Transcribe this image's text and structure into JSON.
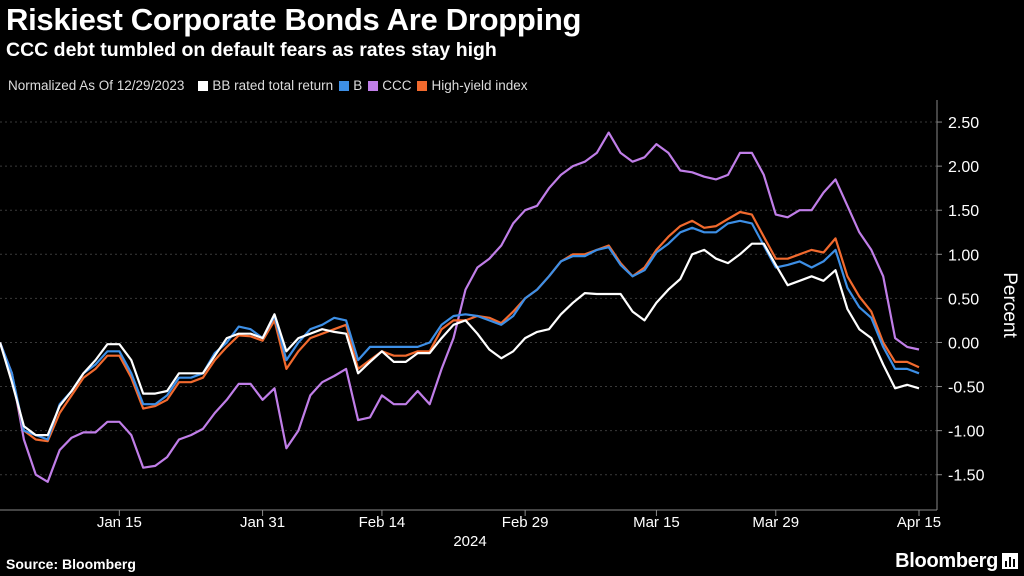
{
  "header": {
    "title": "Riskiest Corporate Bonds Are Dropping",
    "subtitle": "CCC debt tumbled on default fears as rates stay high"
  },
  "legend": {
    "note": "Normalized As Of 12/29/2023",
    "items": [
      {
        "label": "BB rated total return",
        "color": "#ffffff"
      },
      {
        "label": "B",
        "color": "#3d8fe6"
      },
      {
        "label": "CCC",
        "color": "#c07ee8"
      },
      {
        "label": "High-yield index",
        "color": "#f26a2e"
      }
    ]
  },
  "footer": {
    "source": "Source: Bloomberg",
    "brand": "Bloomberg"
  },
  "chart_data": {
    "type": "line",
    "title": "Riskiest Corporate Bonds Are Dropping",
    "ylabel": "Percent",
    "xlabel": "2024",
    "ylim": [
      -1.9,
      2.75
    ],
    "yticks": [
      2.5,
      2.0,
      1.5,
      1.0,
      0.5,
      0.0,
      -0.5,
      -1.0,
      -1.5
    ],
    "ytick_labels": [
      "2.50",
      "2.00",
      "1.50",
      "1.00",
      "0.50",
      "0.00",
      "-0.50",
      "-1.00",
      "-1.50"
    ],
    "x_index_range": [
      0,
      77
    ],
    "xticks": [
      {
        "label": "Jan 15",
        "index": 10
      },
      {
        "label": "Jan 31",
        "index": 22
      },
      {
        "label": "Feb 14",
        "index": 32
      },
      {
        "label": "Feb 29",
        "index": 44
      },
      {
        "label": "Mar 15",
        "index": 55
      },
      {
        "label": "Mar 29",
        "index": 65
      },
      {
        "label": "Apr 15",
        "index": 77
      }
    ],
    "series": [
      {
        "name": "CCC",
        "color": "#c07ee8",
        "values": [
          0,
          -0.35,
          -1.1,
          -1.5,
          -1.58,
          -1.22,
          -1.08,
          -1.02,
          -1.02,
          -0.9,
          -0.9,
          -1.05,
          -1.42,
          -1.4,
          -1.3,
          -1.1,
          -1.05,
          -0.98,
          -0.8,
          -0.65,
          -0.47,
          -0.47,
          -0.65,
          -0.52,
          -1.2,
          -1.0,
          -0.6,
          -0.45,
          -0.38,
          -0.3,
          -0.88,
          -0.85,
          -0.6,
          -0.7,
          -0.7,
          -0.55,
          -0.7,
          -0.3,
          0.05,
          0.6,
          0.85,
          0.95,
          1.1,
          1.35,
          1.5,
          1.55,
          1.75,
          1.9,
          2.0,
          2.05,
          2.15,
          2.38,
          2.15,
          2.05,
          2.1,
          2.25,
          2.15,
          1.95,
          1.93,
          1.88,
          1.85,
          1.9,
          2.15,
          2.15,
          1.9,
          1.45,
          1.42,
          1.5,
          1.5,
          1.7,
          1.85,
          1.55,
          1.25,
          1.05,
          0.75,
          0.05,
          -0.05,
          -0.08
        ]
      },
      {
        "name": "High-yield index",
        "color": "#f26a2e",
        "values": [
          0,
          -0.4,
          -1.0,
          -1.1,
          -1.12,
          -0.8,
          -0.6,
          -0.4,
          -0.3,
          -0.15,
          -0.15,
          -0.4,
          -0.75,
          -0.72,
          -0.65,
          -0.45,
          -0.45,
          -0.4,
          -0.2,
          -0.05,
          0.08,
          0.07,
          0.02,
          0.25,
          -0.3,
          -0.1,
          0.05,
          0.1,
          0.15,
          0.2,
          -0.3,
          -0.2,
          -0.1,
          -0.15,
          -0.15,
          -0.1,
          -0.1,
          0.15,
          0.25,
          0.25,
          0.3,
          0.28,
          0.22,
          0.35,
          0.5,
          0.6,
          0.75,
          0.92,
          1.0,
          1.0,
          1.05,
          1.1,
          0.9,
          0.75,
          0.85,
          1.05,
          1.2,
          1.32,
          1.38,
          1.3,
          1.32,
          1.4,
          1.48,
          1.45,
          1.2,
          0.95,
          0.95,
          1.0,
          1.05,
          1.02,
          1.18,
          0.75,
          0.52,
          0.35,
          0.0,
          -0.22,
          -0.22,
          -0.28
        ]
      },
      {
        "name": "B",
        "color": "#3d8fe6",
        "values": [
          0,
          -0.35,
          -1.0,
          -1.05,
          -1.1,
          -0.7,
          -0.55,
          -0.35,
          -0.25,
          -0.1,
          -0.1,
          -0.35,
          -0.7,
          -0.7,
          -0.6,
          -0.4,
          -0.4,
          -0.35,
          -0.12,
          0.0,
          0.18,
          0.15,
          0.05,
          0.3,
          -0.2,
          0.0,
          0.15,
          0.2,
          0.28,
          0.25,
          -0.2,
          -0.05,
          -0.05,
          -0.05,
          -0.05,
          -0.05,
          0.0,
          0.2,
          0.3,
          0.32,
          0.3,
          0.25,
          0.2,
          0.3,
          0.5,
          0.6,
          0.75,
          0.92,
          0.98,
          0.98,
          1.05,
          1.08,
          0.88,
          0.75,
          0.82,
          1.02,
          1.12,
          1.25,
          1.3,
          1.25,
          1.25,
          1.35,
          1.38,
          1.35,
          1.1,
          0.85,
          0.88,
          0.92,
          0.85,
          0.92,
          1.05,
          0.62,
          0.4,
          0.28,
          -0.05,
          -0.3,
          -0.3,
          -0.35
        ]
      },
      {
        "name": "BB rated total return",
        "color": "#ffffff",
        "values": [
          0,
          -0.45,
          -0.95,
          -1.05,
          -1.05,
          -0.72,
          -0.55,
          -0.35,
          -0.2,
          -0.02,
          -0.02,
          -0.2,
          -0.58,
          -0.58,
          -0.55,
          -0.35,
          -0.35,
          -0.35,
          -0.15,
          0.05,
          0.1,
          0.1,
          0.05,
          0.32,
          -0.1,
          0.05,
          0.1,
          0.15,
          0.12,
          0.1,
          -0.35,
          -0.22,
          -0.1,
          -0.22,
          -0.22,
          -0.12,
          -0.12,
          0.05,
          0.2,
          0.25,
          0.1,
          -0.08,
          -0.18,
          -0.1,
          0.05,
          0.12,
          0.15,
          0.32,
          0.45,
          0.56,
          0.55,
          0.55,
          0.55,
          0.35,
          0.25,
          0.45,
          0.6,
          0.72,
          1.0,
          1.05,
          0.95,
          0.9,
          1.0,
          1.12,
          1.12,
          0.88,
          0.65,
          0.7,
          0.75,
          0.7,
          0.82,
          0.38,
          0.15,
          0.05,
          -0.25,
          -0.52,
          -0.48,
          -0.52
        ]
      }
    ]
  }
}
